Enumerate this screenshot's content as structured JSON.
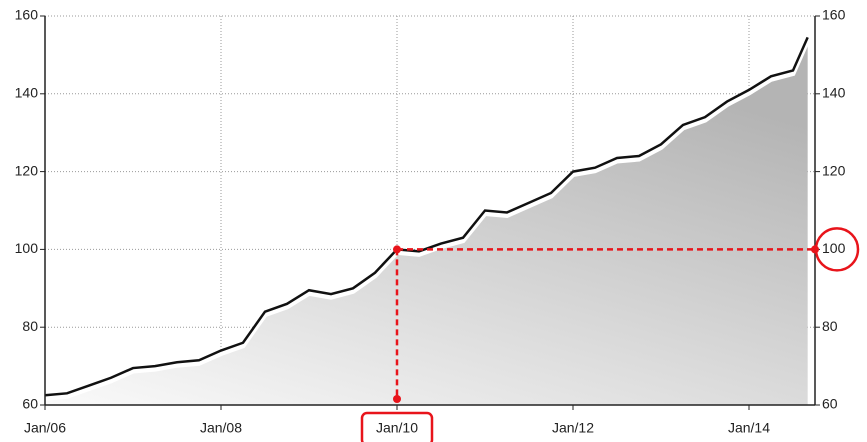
{
  "chart_data": {
    "type": "area",
    "x": [
      "2006-01",
      "2006-04",
      "2006-07",
      "2006-10",
      "2007-01",
      "2007-04",
      "2007-07",
      "2007-10",
      "2008-01",
      "2008-04",
      "2008-07",
      "2008-10",
      "2009-01",
      "2009-04",
      "2009-07",
      "2009-10",
      "2010-01",
      "2010-04",
      "2010-07",
      "2010-10",
      "2011-01",
      "2011-04",
      "2011-07",
      "2011-10",
      "2012-01",
      "2012-04",
      "2012-07",
      "2012-10",
      "2013-01",
      "2013-04",
      "2013-07",
      "2013-10",
      "2014-01",
      "2014-04",
      "2014-07",
      "2014-09"
    ],
    "series": [
      {
        "color": "#111111",
        "values": [
          62.5,
          63,
          65,
          67,
          69.5,
          70,
          71,
          71.5,
          74,
          76,
          84,
          86,
          89.5,
          88.5,
          90,
          94,
          100,
          99.5,
          101.5,
          103,
          110,
          109.5,
          112,
          114.5,
          120,
          121,
          123.5,
          124,
          127,
          132,
          134,
          138,
          141,
          144.5,
          146,
          154.5
        ]
      }
    ],
    "xlim": [
      "2006-01",
      "2014-10"
    ],
    "xticks": [
      {
        "value": "2006-01",
        "label": "Jan/06"
      },
      {
        "value": "2008-01",
        "label": "Jan/08"
      },
      {
        "value": "2010-01",
        "label": "Jan/10"
      },
      {
        "value": "2012-01",
        "label": "Jan/12"
      },
      {
        "value": "2014-01",
        "label": "Jan/14"
      }
    ],
    "ylim": [
      60,
      160
    ],
    "yticks": [
      60,
      80,
      100,
      120,
      140,
      160
    ],
    "grid": true,
    "highlight_color": "#e8141b"
  }
}
